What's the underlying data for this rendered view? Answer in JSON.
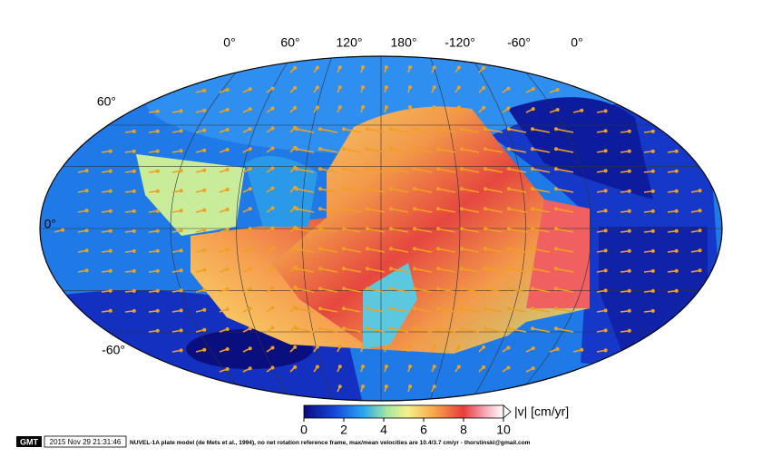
{
  "map": {
    "lon_labels": [
      "0°",
      "60°",
      "120°",
      "180°",
      "-120°",
      "-60°",
      "0°"
    ],
    "lat_labels": [
      "60°",
      "0°",
      "-60°"
    ],
    "colorbar": {
      "lim": [
        0,
        10
      ],
      "ticks": [
        0,
        2,
        4,
        6,
        8,
        10
      ],
      "label": "|v| [cm/yr]"
    },
    "footer": {
      "logo": "GMT",
      "timestamp": "2015 Nov 29 21:31:46",
      "caption": "NUVEL-1A plate model (de Mets et al., 1994), no net rotation reference frame, max/mean velocities are 10.4/3.7 cm/yr - thorstinski@gmail.com"
    }
  }
}
